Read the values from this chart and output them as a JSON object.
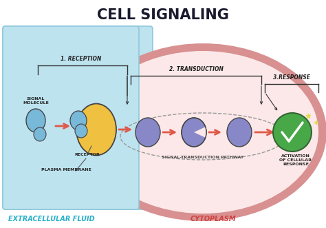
{
  "title": "CELL SIGNALING",
  "title_fontsize": 15,
  "title_fontweight": "bold",
  "title_color": "#1a1a2e",
  "bg_color": "#ffffff",
  "extracellular_color": "#bde3ef",
  "extracellular_edge": "#90c8dc",
  "cytoplasm_color": "#f0c8c8",
  "cytoplasm_border": "#d89090",
  "cytoplasm_inner_color": "#fce8e8",
  "label_extracellular": "EXTRACELLULAR FLUID",
  "label_cytoplasm": "CYTOPLASM",
  "label_extracellular_color": "#2ab0c8",
  "label_cytoplasm_color": "#d04040",
  "stage1_label": "1. RECEPTION",
  "stage2_label": "2. TRANSDUCTION",
  "stage3_label": "3.RESPONSE",
  "signal_molecule_label": "SIGNAL\nMOLECULE",
  "receptor_label": "RECEPTOR",
  "plasma_membrane_label": "PLASMA MEMBRANE",
  "pathway_label": "SIGNAL-TRANSDUCTION PATHWAY",
  "activation_label": "ACTIVATION\nOF CELLULAR\nRESPONSE",
  "signal_mol_color": "#78b8d8",
  "receptor_color": "#f0c040",
  "pathway_mol_color": "#8888c8",
  "arrow_color": "#e05848",
  "outline_color": "#444444",
  "check_color": "#48a848",
  "check_border": "#336633"
}
